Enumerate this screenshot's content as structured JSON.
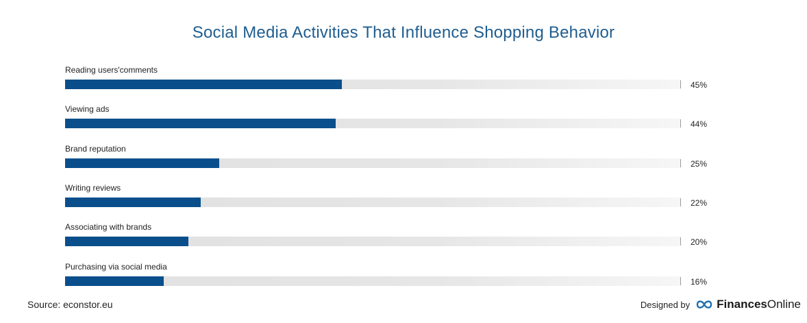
{
  "chart_data": {
    "type": "bar",
    "orientation": "horizontal",
    "title": "Social Media Activities That Influence Shopping Behavior",
    "categories": [
      "Reading users'comments",
      "Viewing ads",
      "Brand reputation",
      "Writing reviews",
      "Associating with brands",
      "Purchasing via social media"
    ],
    "values": [
      45,
      44,
      25,
      22,
      20,
      16
    ],
    "value_labels": [
      "45%",
      "44%",
      "25%",
      "22%",
      "20%",
      "16%"
    ],
    "xlim": [
      0,
      100
    ],
    "grid": false,
    "bar_color": "#0a4f8c",
    "track_color": "#e4e4e4"
  },
  "footer": {
    "source": "Source: econstor.eu",
    "designed_by": "Designed by",
    "brand_bold": "Finances",
    "brand_regular": "Online"
  }
}
